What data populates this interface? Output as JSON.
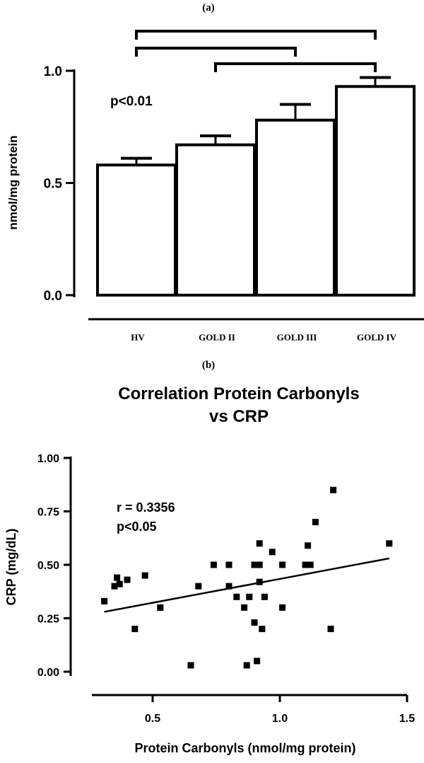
{
  "chart_data": [
    {
      "panel_label": "(a)",
      "type": "bar",
      "categories": [
        "HV",
        "GOLD II",
        "GOLD III",
        "GOLD IV"
      ],
      "values": [
        0.58,
        0.67,
        0.78,
        0.93
      ],
      "errors": [
        0.03,
        0.04,
        0.07,
        0.04
      ],
      "ylabel": "nmol/mg protein",
      "ylim": [
        0.0,
        1.0
      ],
      "yticks": [
        0.0,
        0.5,
        1.0
      ],
      "ytick_labels": [
        "0.0",
        "0.5",
        "1.0"
      ],
      "annotation": "p<0.01",
      "significance_brackets": [
        {
          "from": 0,
          "to": 3
        },
        {
          "from": 0,
          "to": 2
        },
        {
          "from": 1,
          "to": 3
        }
      ],
      "grid": false,
      "bar_color": "#ffffff",
      "line_color": "#000000"
    },
    {
      "panel_label": "(b)",
      "type": "scatter",
      "title": [
        "Correlation Protein Carbonyls",
        "vs CRP"
      ],
      "xlabel": "Protein Carbonyls (nmol/mg protein)",
      "ylabel": "CRP (mg/dL)",
      "xlim": [
        0.25,
        1.5
      ],
      "ylim": [
        0.0,
        1.0
      ],
      "xticks": [
        0.5,
        1.0,
        1.5
      ],
      "xtick_labels": [
        "0.5",
        "1.0",
        "1.5"
      ],
      "yticks": [
        0.0,
        0.25,
        0.5,
        0.75,
        1.0
      ],
      "ytick_labels": [
        "0.00",
        "0.25",
        "0.50",
        "0.75",
        "1.00"
      ],
      "annotations": [
        "r = 0.3356",
        "p<0.05"
      ],
      "points": [
        {
          "x": 0.31,
          "y": 0.33
        },
        {
          "x": 0.35,
          "y": 0.4
        },
        {
          "x": 0.36,
          "y": 0.44
        },
        {
          "x": 0.37,
          "y": 0.41
        },
        {
          "x": 0.4,
          "y": 0.43
        },
        {
          "x": 0.43,
          "y": 0.2
        },
        {
          "x": 0.47,
          "y": 0.45
        },
        {
          "x": 0.53,
          "y": 0.3
        },
        {
          "x": 0.65,
          "y": 0.03
        },
        {
          "x": 0.68,
          "y": 0.4
        },
        {
          "x": 0.74,
          "y": 0.5
        },
        {
          "x": 0.8,
          "y": 0.5
        },
        {
          "x": 0.8,
          "y": 0.4
        },
        {
          "x": 0.83,
          "y": 0.35
        },
        {
          "x": 0.86,
          "y": 0.3
        },
        {
          "x": 0.87,
          "y": 0.03
        },
        {
          "x": 0.88,
          "y": 0.35
        },
        {
          "x": 0.9,
          "y": 0.5
        },
        {
          "x": 0.9,
          "y": 0.23
        },
        {
          "x": 0.91,
          "y": 0.05
        },
        {
          "x": 0.92,
          "y": 0.5
        },
        {
          "x": 0.92,
          "y": 0.42
        },
        {
          "x": 0.92,
          "y": 0.6
        },
        {
          "x": 0.93,
          "y": 0.2
        },
        {
          "x": 0.94,
          "y": 0.35
        },
        {
          "x": 0.97,
          "y": 0.56
        },
        {
          "x": 1.01,
          "y": 0.5
        },
        {
          "x": 1.01,
          "y": 0.3
        },
        {
          "x": 1.1,
          "y": 0.5
        },
        {
          "x": 1.11,
          "y": 0.59
        },
        {
          "x": 1.12,
          "y": 0.5
        },
        {
          "x": 1.14,
          "y": 0.7
        },
        {
          "x": 1.2,
          "y": 0.2
        },
        {
          "x": 1.21,
          "y": 0.85
        },
        {
          "x": 1.43,
          "y": 0.6
        }
      ],
      "fit_line": {
        "x": [
          0.31,
          1.43
        ],
        "y": [
          0.28,
          0.53
        ]
      },
      "grid": false,
      "marker_color": "#000000"
    }
  ]
}
